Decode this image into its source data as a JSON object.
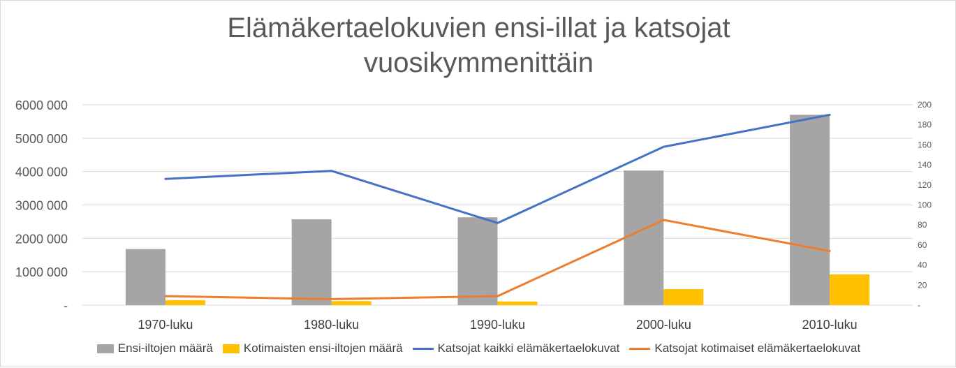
{
  "chart_data": {
    "type": "bar",
    "title": [
      "Elämäkertaelokuvien ensi-illat ja katsojat",
      "vuosikymmenittäin"
    ],
    "categories": [
      "1970-luku",
      "1980-luku",
      "1990-luku",
      "2000-luku",
      "2010-luku"
    ],
    "left_axis": {
      "ticks": [
        "-",
        "1000 000",
        "2000 000",
        "3000 000",
        "4000 000",
        "5000 000",
        "6000 000"
      ],
      "range": [
        0,
        6000000
      ]
    },
    "right_axis": {
      "ticks": [
        "-",
        "20",
        "40",
        "60",
        "80",
        "100",
        "120",
        "140",
        "160",
        "180",
        "200"
      ],
      "range": [
        0,
        200
      ]
    },
    "grid": true,
    "legend_position": "bottom",
    "series": [
      {
        "name": "Ensi-iltojen määrä",
        "type": "bar",
        "axis": "left",
        "color": "#a5a5a5",
        "values": [
          1680000,
          2570000,
          2630000,
          4030000,
          5700000
        ]
      },
      {
        "name": "Kotimaisten ensi-iltojen määrä",
        "type": "bar",
        "axis": "left",
        "color": "#ffc000",
        "values": [
          150000,
          120000,
          110000,
          480000,
          920000
        ]
      },
      {
        "name": "Katsojat kaikki elämäkertaelokuvat",
        "type": "line",
        "axis": "right",
        "color": "#4472c4",
        "values": [
          126,
          134,
          82,
          158,
          190
        ]
      },
      {
        "name": "Katsojat kotimaiset elämäkertaelokuvat",
        "type": "line",
        "axis": "right",
        "color": "#ed7d31",
        "values": [
          9,
          6,
          9,
          85,
          54
        ]
      }
    ]
  }
}
